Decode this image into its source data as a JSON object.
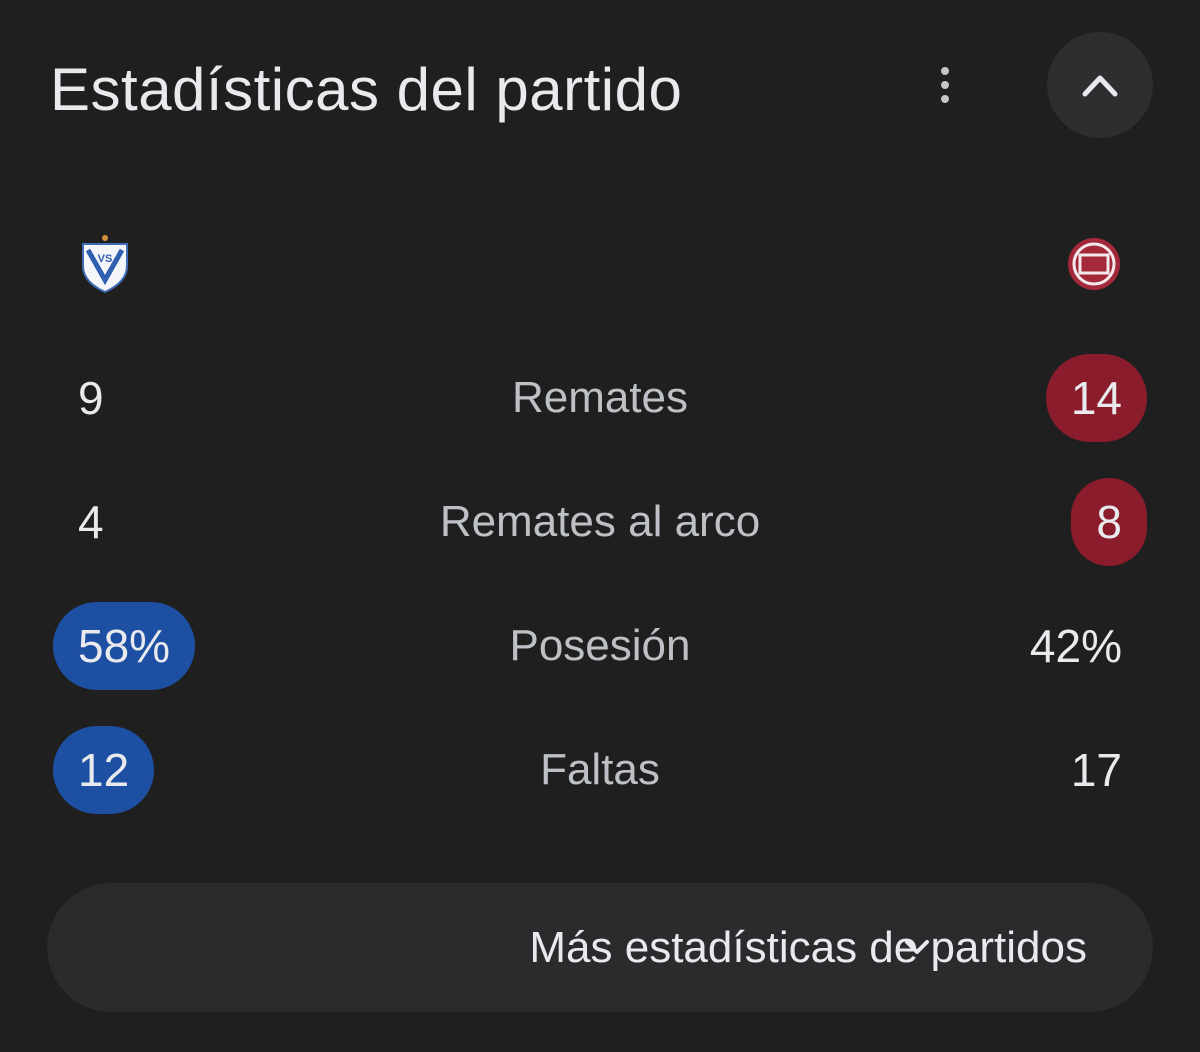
{
  "header": {
    "title": "Estadísticas del partido"
  },
  "stats": [
    {
      "home": "9",
      "label": "Remates",
      "away": "14",
      "highlight": "away"
    },
    {
      "home": "4",
      "label": "Remates al arco",
      "away": "8",
      "highlight": "away"
    },
    {
      "home": "58%",
      "label": "Posesión",
      "away": "42%",
      "highlight": "home"
    },
    {
      "home": "12",
      "label": "Faltas",
      "away": "17",
      "highlight": "home"
    }
  ],
  "footer": {
    "button": "Más estadísticas de partidos"
  }
}
